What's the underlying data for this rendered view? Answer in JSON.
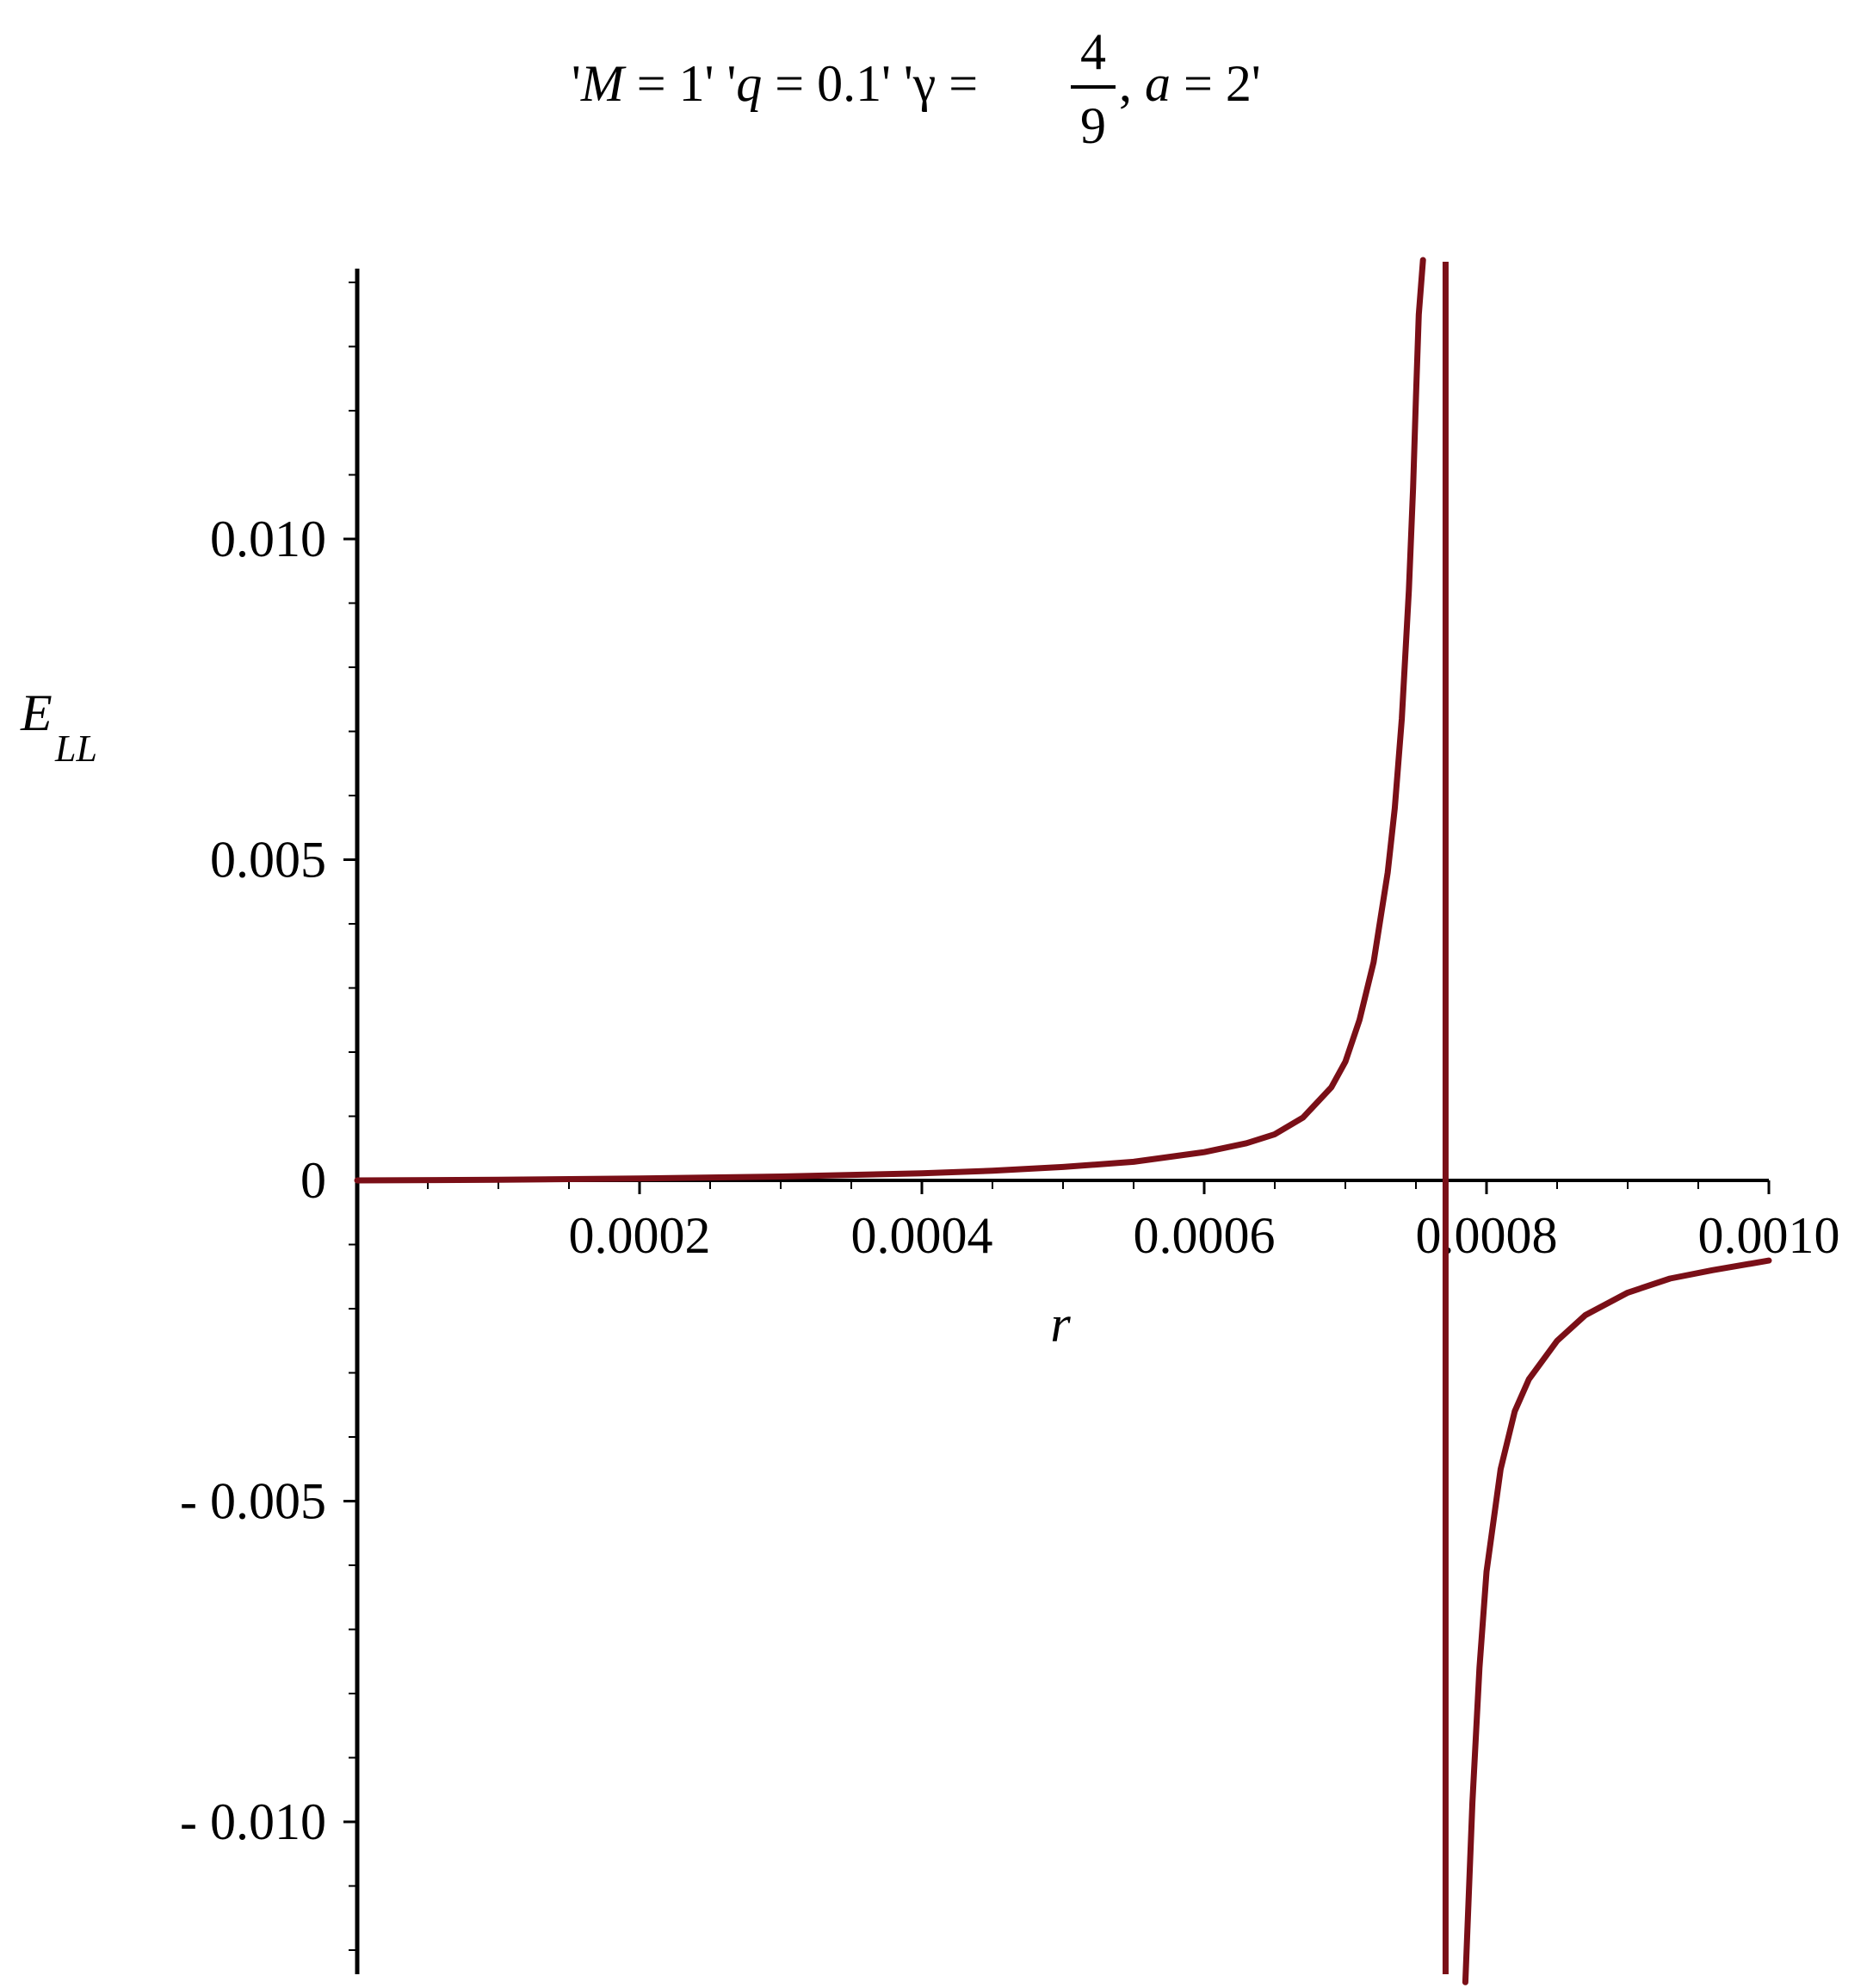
{
  "chart_data": {
    "type": "line",
    "title": {
      "part1_open": "'",
      "part1_var": "M",
      "part1_rest": " = 1' '",
      "part2_var": "q",
      "part2_rest": " = 0.1' '",
      "part3_var": "γ",
      "part3_eq": " = ",
      "frac_num": "4",
      "frac_den": "9",
      "part3_after": ", ",
      "part4_var": "a",
      "part4_rest": " = 2'"
    },
    "xlabel": "r",
    "ylabel_main": "E",
    "ylabel_sub": "LL",
    "xlim": [
      0,
      0.001
    ],
    "ylim": [
      -0.0123,
      0.0143
    ],
    "x_ticks": [
      {
        "value": 0.0002,
        "label": "0.0002"
      },
      {
        "value": 0.0004,
        "label": "0.0004"
      },
      {
        "value": 0.0006,
        "label": "0.0006"
      },
      {
        "value": 0.0008,
        "label": "0.0008"
      },
      {
        "value": 0.001,
        "label": "0.0010"
      }
    ],
    "y_ticks": [
      {
        "value": 0.01,
        "label": "0.010"
      },
      {
        "value": 0.005,
        "label": "0.005"
      },
      {
        "value": 0,
        "label": "0"
      },
      {
        "value": -0.005,
        "label": "- 0.005"
      },
      {
        "value": -0.01,
        "label": "- 0.010"
      }
    ],
    "asymptote_x": 0.000771,
    "line_color": "#7a0f17",
    "series": [
      {
        "x": [
          0,
          0.0001,
          0.0002,
          0.0003,
          0.0004,
          0.00045,
          0.0005,
          0.00055,
          0.0006,
          0.00063,
          0.00065,
          0.00067,
          0.00069,
          0.0007,
          0.00071,
          0.00072,
          0.00073,
          0.000735,
          0.00074,
          0.000745,
          0.000748,
          0.00075,
          0.000752,
          0.000755
        ],
        "y": [
          0,
          1e-05,
          3e-05,
          6e-05,
          0.00011,
          0.00015,
          0.00021,
          0.00029,
          0.00044,
          0.00058,
          0.00072,
          0.00098,
          0.00145,
          0.00185,
          0.0025,
          0.0034,
          0.0048,
          0.0058,
          0.0072,
          0.0092,
          0.0108,
          0.0122,
          0.0135,
          0.0145
        ]
      },
      {
        "x": [
          0.000785,
          0.00079,
          0.000795,
          0.0008,
          0.00081,
          0.00082,
          0.00083,
          0.00085,
          0.00087,
          0.0009,
          0.00093,
          0.00096,
          0.001
        ],
        "y": [
          -0.0125,
          -0.0097,
          -0.0076,
          -0.0061,
          -0.0045,
          -0.0036,
          -0.0031,
          -0.0025,
          -0.0021,
          -0.00175,
          -0.00153,
          -0.0014,
          -0.00125
        ]
      }
    ]
  }
}
